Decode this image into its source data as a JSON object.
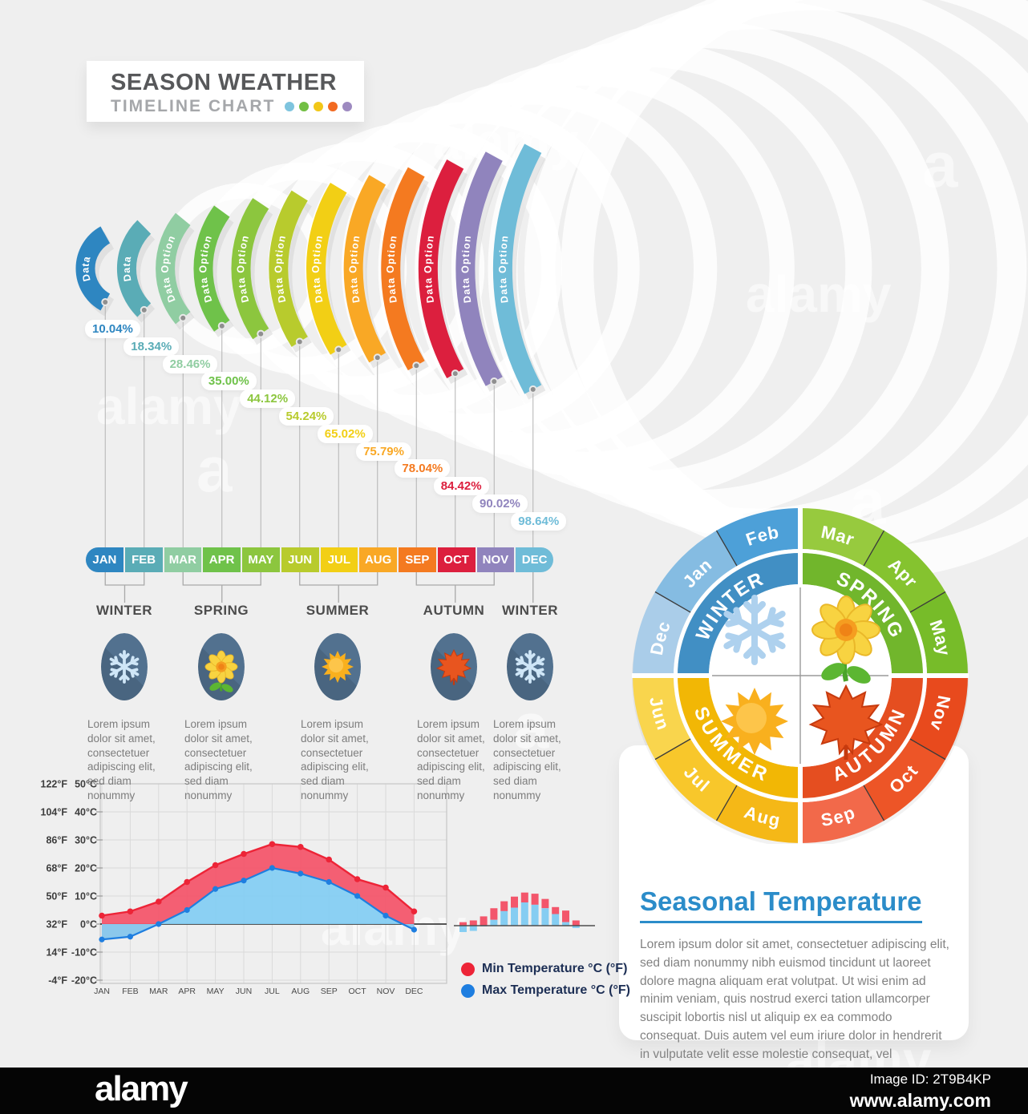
{
  "title_badge": {
    "line1": "SEASON WEATHER",
    "line2": "TIMELINE CHART",
    "dot_colors": [
      "#7ec4de",
      "#72bf44",
      "#f2c718",
      "#f26a21",
      "#9d8ac0"
    ]
  },
  "timeline": {
    "arcs": [
      {
        "label": "Data",
        "color": "#2e86c1"
      },
      {
        "label": "Data",
        "color": "#5aacb6"
      },
      {
        "label": "Data Option",
        "color": "#90cda2"
      },
      {
        "label": "Data Option",
        "color": "#6fc24a"
      },
      {
        "label": "Data Option",
        "color": "#8cc63e"
      },
      {
        "label": "Data Option",
        "color": "#b8cb2d"
      },
      {
        "label": "Data Option",
        "color": "#f2cf15"
      },
      {
        "label": "Data Option",
        "color": "#f9a825"
      },
      {
        "label": "Data Option",
        "color": "#f47a20"
      },
      {
        "label": "Data Option",
        "color": "#dc1f3e"
      },
      {
        "label": "Data Option",
        "color": "#9084bd"
      },
      {
        "label": "Data Option",
        "color": "#6fbcd8"
      }
    ],
    "season_groups": [
      {
        "name": "WINTER",
        "icon": "snowflake",
        "months": [
          "JAN",
          "FEB"
        ],
        "description": "Lorem ipsum dolor sit amet, consectetuer adipiscing elit, sed diam nonummy"
      },
      {
        "name": "SPRING",
        "icon": "flower",
        "months": [
          "MAR",
          "APR",
          "MAY"
        ],
        "description": "Lorem ipsum dolor sit amet, consectetuer adipiscing elit, sed diam nonummy"
      },
      {
        "name": "SUMMER",
        "icon": "sun",
        "months": [
          "JUN",
          "JUL",
          "AUG"
        ],
        "description": "Lorem ipsum dolor sit amet, consectetuer adipiscing elit, sed diam nonummy"
      },
      {
        "name": "AUTUMN",
        "icon": "maple-leaf",
        "months": [
          "SEP",
          "OCT",
          "NOV"
        ],
        "description": "Lorem ipsum dolor sit amet, consectetuer adipiscing elit, sed diam nonummy"
      },
      {
        "name": "WINTER",
        "icon": "snowflake",
        "months": [
          "DEC"
        ],
        "description": "Lorem ipsum dolor sit amet, consectetuer adipiscing elit, sed diam nonummy"
      }
    ]
  },
  "chart_data": [
    {
      "type": "bar",
      "subtype": "timeline-arc-percentages",
      "title": "Season Weather Timeline Chart",
      "categories": [
        "JAN",
        "FEB",
        "MAR",
        "APR",
        "MAY",
        "JUN",
        "JUL",
        "AUG",
        "SEP",
        "OCT",
        "NOV",
        "DEC"
      ],
      "values": [
        10.04,
        18.34,
        28.46,
        35.0,
        44.12,
        54.24,
        65.02,
        75.79,
        78.04,
        84.42,
        90.02,
        98.64
      ],
      "unit": "%"
    },
    {
      "type": "line",
      "subtype": "temperature-area-chart",
      "categories": [
        "JAN",
        "FEB",
        "MAR",
        "APR",
        "MAY",
        "JUN",
        "JUL",
        "AUG",
        "SEP",
        "OCT",
        "NOV",
        "DEC"
      ],
      "series": [
        {
          "name": "Min Temperature °C (°F)",
          "color": "#ed2437",
          "area_color": "#f3566b",
          "values": [
            3,
            4.5,
            8,
            15,
            21,
            25,
            28.5,
            27.5,
            23,
            16,
            13,
            4.5
          ]
        },
        {
          "name": "Max Temperature °C (°F)",
          "color": "#1e7ee0",
          "area_color": "#85cdf2",
          "values": [
            -5.5,
            -4.5,
            0,
            5,
            12.5,
            15.5,
            20,
            18,
            15,
            10,
            3,
            -2
          ]
        }
      ],
      "ylim": [
        -20,
        50
      ],
      "yticks_c": [
        "50°C",
        "40°C",
        "30°C",
        "20°C",
        "10°C",
        "0°C",
        "-10°C",
        "-20°C"
      ],
      "yticks_f": [
        "122°F",
        "104°F",
        "86°F",
        "68°F",
        "50°F",
        "32°F",
        "14°F",
        "-4°F"
      ],
      "grid": true,
      "legend_position": "right-of-chart"
    },
    {
      "type": "bar",
      "subtype": "stacked-mini-bars",
      "categories": [
        "JAN",
        "FEB",
        "MAR",
        "APR",
        "MAY",
        "JUN",
        "JUL",
        "AUG",
        "SEP",
        "OCT",
        "NOV",
        "DEC"
      ],
      "series": [
        {
          "name": "Min Temperature °C (°F)",
          "color": "#f3566b",
          "values": [
            3,
            4.5,
            8,
            15,
            21,
            25,
            28.5,
            27.5,
            23,
            16,
            13,
            4.5
          ]
        },
        {
          "name": "Max Temperature °C (°F)",
          "color": "#85cdf2",
          "values": [
            -5.5,
            -4.5,
            0,
            5,
            12.5,
            15.5,
            20,
            18,
            15,
            10,
            3,
            -2
          ]
        }
      ]
    },
    {
      "type": "pie",
      "subtype": "season-wheel",
      "slices": [
        {
          "label": "Dec",
          "season": "WINTER"
        },
        {
          "label": "Jan",
          "season": "WINTER"
        },
        {
          "label": "Feb",
          "season": "WINTER"
        },
        {
          "label": "Mar",
          "season": "SPRING"
        },
        {
          "label": "Apr",
          "season": "SPRING"
        },
        {
          "label": "May",
          "season": "SPRING"
        },
        {
          "label": "Jun",
          "season": "SUMMER"
        },
        {
          "label": "Jul",
          "season": "SUMMER"
        },
        {
          "label": "Aug",
          "season": "SUMMER"
        },
        {
          "label": "Sep",
          "season": "AUTUMN"
        },
        {
          "label": "Oct",
          "season": "AUTUMN"
        },
        {
          "label": "Nov",
          "season": "AUTUMN"
        }
      ]
    }
  ],
  "legend": {
    "items": [
      {
        "label": "Min Temperature °C (°F)",
        "color": "#ed2437"
      },
      {
        "label": "Max Temperature °C (°F)",
        "color": "#1e7ee0"
      }
    ]
  },
  "wheel": {
    "months": [
      {
        "label": "Mar",
        "color": "#97ca3e",
        "a1": 0,
        "dir": "cw"
      },
      {
        "label": "Apr",
        "color": "#85c32f",
        "a1": 30,
        "dir": "cw"
      },
      {
        "label": "May",
        "color": "#77bc29",
        "a1": 60,
        "dir": "cw"
      },
      {
        "label": "Nov",
        "color": "#e84a1d",
        "a1": 90,
        "dir": "cw"
      },
      {
        "label": "Oct",
        "color": "#ed5527",
        "a1": 120,
        "dir": "ccw"
      },
      {
        "label": "Sep",
        "color": "#f2694a",
        "a1": 150,
        "dir": "ccw"
      },
      {
        "label": "Aug",
        "color": "#f5b817",
        "a1": 180,
        "dir": "ccw"
      },
      {
        "label": "Jul",
        "color": "#f8c72b",
        "a1": 210,
        "dir": "ccw"
      },
      {
        "label": "Jun",
        "color": "#f9d54d",
        "a1": 240,
        "dir": "ccw"
      },
      {
        "label": "Dec",
        "color": "#aacde9",
        "a1": 270,
        "dir": "cw"
      },
      {
        "label": "Jan",
        "color": "#85bce2",
        "a1": 300,
        "dir": "cw"
      },
      {
        "label": "Feb",
        "color": "#4da0d8",
        "a1": 330,
        "dir": "cw"
      }
    ],
    "seasons": [
      {
        "name": "WINTER",
        "color": "#418fc4",
        "a1": 270,
        "dir": "cw"
      },
      {
        "name": "SPRING",
        "color": "#71b62c",
        "a1": 0,
        "dir": "cw"
      },
      {
        "name": "SUMMER",
        "color": "#f2b705",
        "a1": 180,
        "dir": "ccw"
      },
      {
        "name": "AUTUMN",
        "color": "#e54e20",
        "a1": 90,
        "dir": "ccw"
      }
    ],
    "icons": [
      "snowflake",
      "flower",
      "sun",
      "maple-leaf"
    ]
  },
  "side_card": {
    "title": "Seasonal Temperature",
    "body": "Lorem ipsum dolor sit amet, consectetuer adipiscing elit, sed diam nonummy nibh euismod tincidunt ut laoreet dolore magna aliquam erat volutpat. Ut wisi enim ad minim veniam, quis nostrud exerci tation ullamcorper suscipit lobortis nisl ut aliquip ex ea commodo consequat. Duis autem vel eum iriure dolor in hendrerit in vulputate velit esse molestie consequat, vel"
  },
  "footer": {
    "logo": "alamy",
    "image_id": "Image ID: 2T9B4KP",
    "url": "www.alamy.com"
  },
  "watermark": {
    "text": "alamy",
    "mark": "a"
  }
}
